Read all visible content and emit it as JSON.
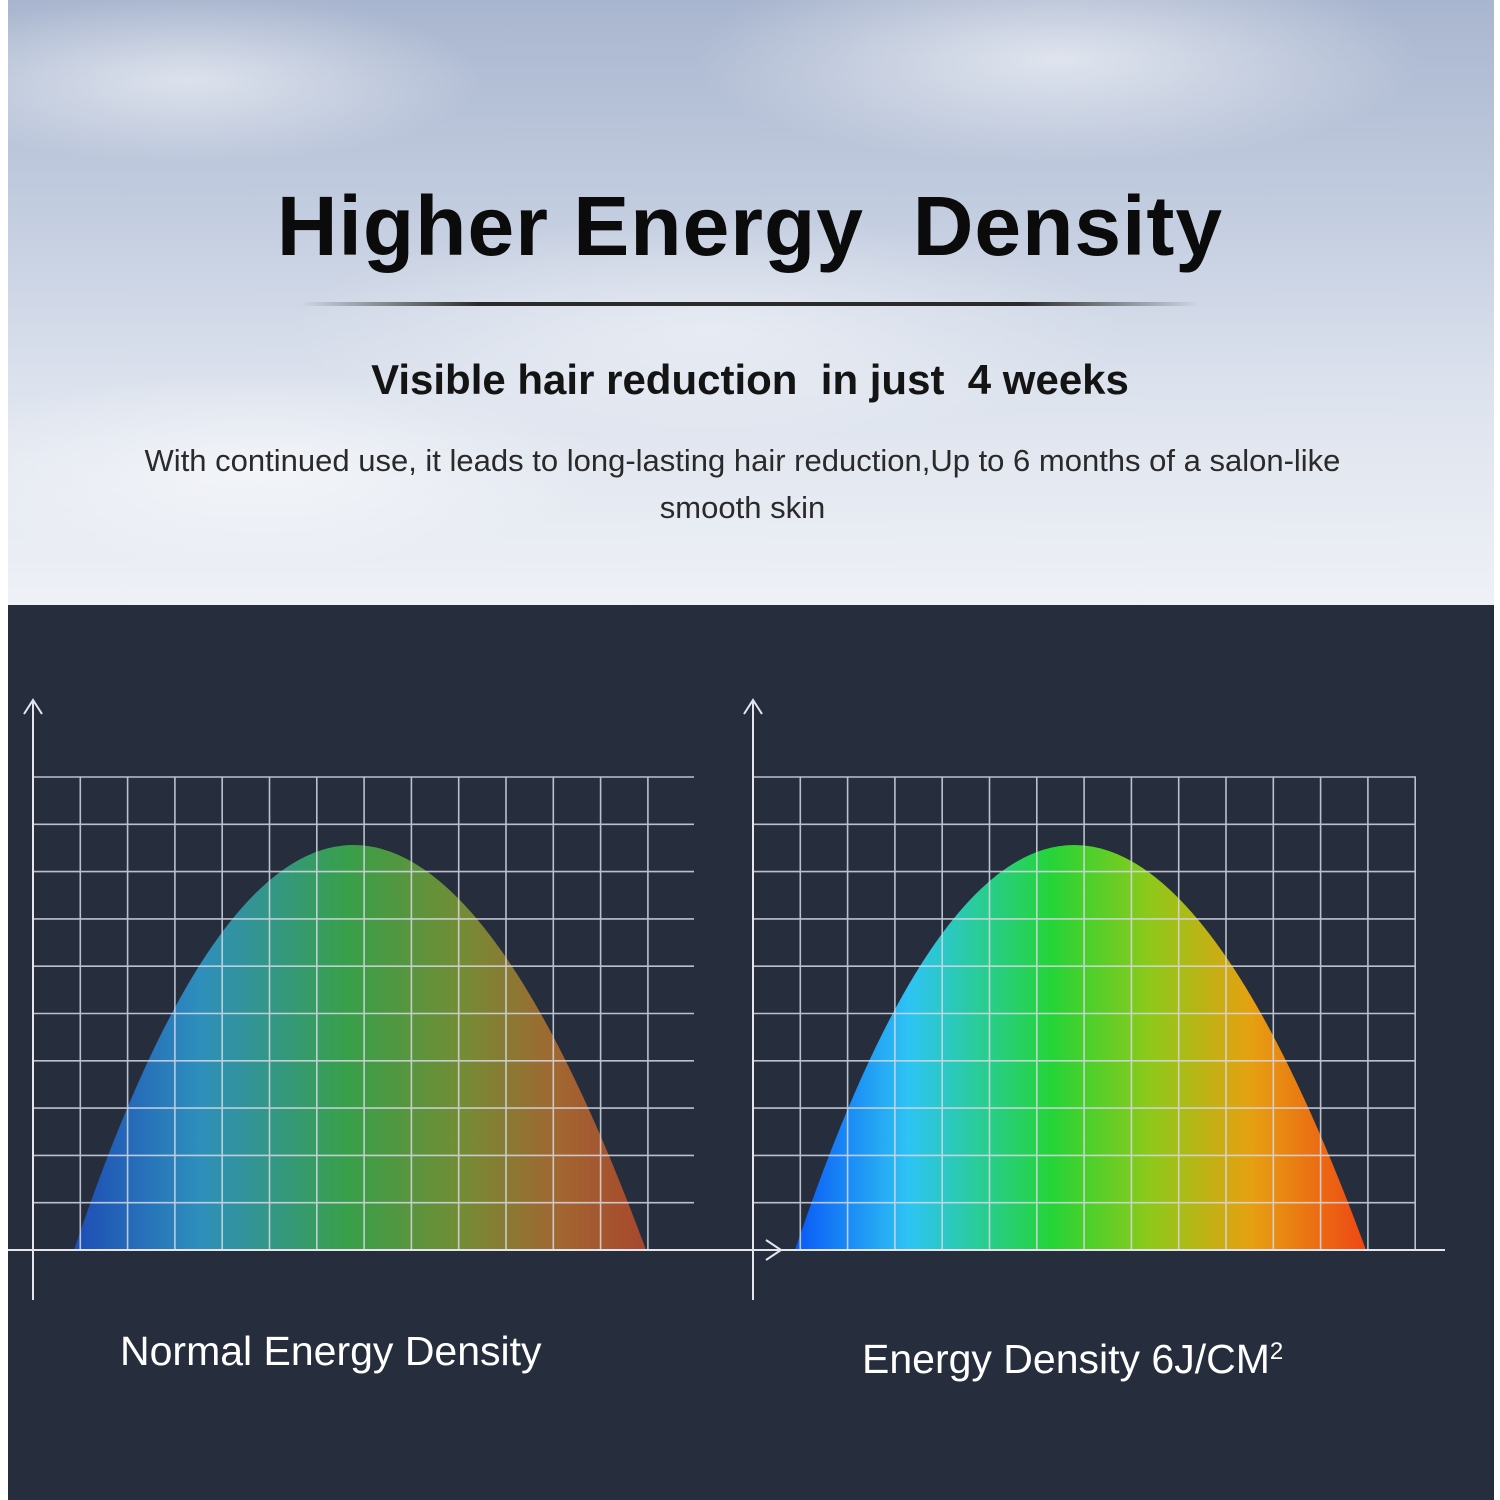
{
  "header": {
    "title": "Higher Energy  Density",
    "subtitle": "Visible hair reduction  in just  4 weeks",
    "description": "With continued use, it leads to long-lasting hair reduction,Up to 6 months of  a salon-like smooth skin"
  },
  "charts": [
    {
      "label": "Normal Energy Density",
      "type": "bell-curve",
      "gradient_colors": [
        "#1d57c0",
        "#2f9ad0",
        "#3dab4a",
        "#7d9a36",
        "#b86a2e",
        "#b8482e"
      ],
      "saturation": "muted"
    },
    {
      "label_main": "Energy Density 6J/CM",
      "label_superscript": "2",
      "type": "bell-curve",
      "gradient_colors": [
        "#0b5cf4",
        "#2fc2f2",
        "#2bd33a",
        "#8cc81e",
        "#e0a012",
        "#ec4a14"
      ],
      "saturation": "vivid"
    }
  ],
  "colors": {
    "panel_background": "#262e3e",
    "grid_line": "#d8dce6",
    "axis_line": "#e6e8ee"
  }
}
